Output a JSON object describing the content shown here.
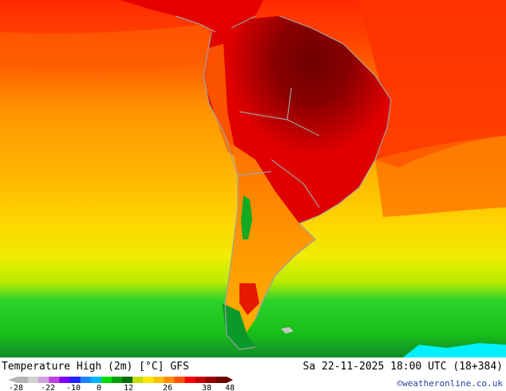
{
  "map": {
    "region": "South America",
    "colors": {
      "ocean_hot": "#ff2a00",
      "ocean_warm": "#ff8800",
      "ocean_mild": "#ffb000",
      "ocean_cool": "#ffe000",
      "ocean_cold": "#e8f000",
      "polar_green": "#1bd21b",
      "polar_green_dark": "#0a9a2a",
      "land_hottest": "#7a0000",
      "land_hot": "#b80000",
      "land_warm": "#e80000",
      "andes": "#11aa22",
      "coast": "#a0a0a0",
      "antarctic_ice": "#00f0ff"
    }
  },
  "footer": {
    "title": "Temperature High (2m) [°C] GFS",
    "datetime": "Sa 22-11-2025 18:00 UTC (18+384)",
    "credit": "©weatheronline.co.uk"
  },
  "colorbar": {
    "ticks": [
      "-28",
      "-22",
      "-10",
      "0",
      "12",
      "26",
      "38",
      "48"
    ],
    "swatches": [
      "#b4b4b4",
      "#d2d2d2",
      "#d0a0e0",
      "#c040e0",
      "#8000ff",
      "#2020ff",
      "#1e82ff",
      "#00b4ff",
      "#00dc00",
      "#00a000",
      "#006e00",
      "#c8dc00",
      "#ffe600",
      "#ffc000",
      "#ff8c00",
      "#ff5000",
      "#ff0000",
      "#c80000",
      "#960000",
      "#6e0000"
    ]
  }
}
